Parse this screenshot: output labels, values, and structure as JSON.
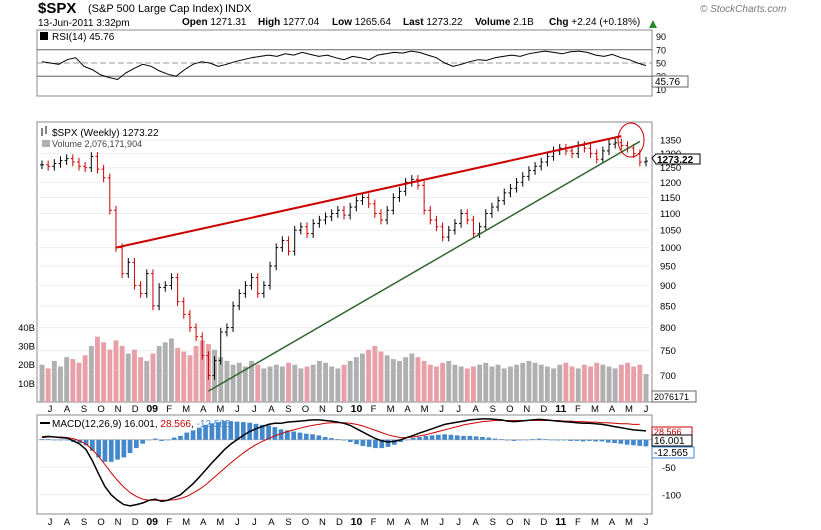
{
  "header": {
    "symbol": "$SPX",
    "name": "(S&P 500 Large Cap Index)",
    "exchange": "INDX",
    "brand": "© StockCharts.com",
    "date": "13-Jun-2011 3:32pm",
    "open_label": "Open",
    "open": "1271.31",
    "high_label": "High",
    "high": "1277.04",
    "low_label": "Low",
    "low": "1265.64",
    "last_label": "Last",
    "last": "1273.22",
    "volume_label": "Volume",
    "volume": "2.1B",
    "chg_label": "Chg",
    "chg": "+2.24 (+0.18%)"
  },
  "colors": {
    "up_bar": "#000000",
    "down_bar": "#cc0000",
    "volume_up": "#b0b0b0",
    "volume_down": "#e8a0a8",
    "upper_trendline": "#cc0000",
    "lower_trendline": "#336633",
    "macd_line": "#000000",
    "signal_line": "#cc0000",
    "histogram": "#4488cc",
    "rsi_line": "#000000"
  },
  "chart_data": [
    {
      "type": "line",
      "panel": "RSI",
      "legend": "RSI(14) 45.76",
      "current_value": "45.76",
      "ylim": [
        0,
        100
      ],
      "y_ticks": [
        10,
        30,
        50,
        70,
        90
      ],
      "reference_lines": [
        30,
        70
      ],
      "values": [
        52,
        50,
        48,
        55,
        58,
        45,
        40,
        32,
        28,
        25,
        35,
        42,
        48,
        45,
        38,
        33,
        30,
        40,
        48,
        52,
        50,
        45,
        48,
        52,
        55,
        58,
        60,
        62,
        60,
        64,
        62,
        66,
        63,
        60,
        62,
        58,
        55,
        60,
        58,
        55,
        62,
        64,
        66,
        65,
        68,
        66,
        62,
        58,
        50,
        45,
        48,
        52,
        55,
        54,
        58,
        60,
        62,
        60,
        64,
        66,
        68,
        66,
        64,
        67,
        68,
        66,
        62,
        60,
        63,
        58,
        55,
        50,
        46
      ]
    },
    {
      "type": "bar",
      "panel": "Price",
      "legend": "$SPX (Weekly) 1273.22",
      "volume_legend": "Volume 2,076,171,904",
      "current_value": "1273.22",
      "current_volume_label": "2076171",
      "y_scale": "log",
      "ylim": [
        650,
        1420
      ],
      "y_ticks": [
        700,
        750,
        800,
        850,
        900,
        950,
        1000,
        1050,
        1100,
        1150,
        1200,
        1250,
        1300,
        1350
      ],
      "volume_ticks": [
        "10B",
        "20B",
        "30B",
        "40B"
      ],
      "volume_max": 45,
      "x_labels": [
        "J",
        "A",
        "S",
        "O",
        "N",
        "D",
        "09",
        "F",
        "M",
        "A",
        "M",
        "J",
        "J",
        "A",
        "S",
        "O",
        "N",
        "D",
        "10",
        "F",
        "M",
        "A",
        "M",
        "J",
        "J",
        "A",
        "S",
        "O",
        "N",
        "D",
        "11",
        "F",
        "M",
        "A",
        "M",
        "J"
      ],
      "closes": [
        1260,
        1255,
        1265,
        1275,
        1282,
        1270,
        1255,
        1250,
        1290,
        1245,
        1215,
        1110,
        1000,
        930,
        960,
        900,
        880,
        930,
        850,
        895,
        900,
        920,
        860,
        830,
        800,
        780,
        740,
        700,
        730,
        790,
        800,
        850,
        880,
        900,
        920,
        880,
        900,
        950,
        1000,
        1020,
        990,
        1050,
        1060,
        1040,
        1070,
        1080,
        1090,
        1100,
        1110,
        1095,
        1120,
        1140,
        1150,
        1130,
        1100,
        1080,
        1110,
        1150,
        1170,
        1200,
        1210,
        1190,
        1110,
        1080,
        1060,
        1030,
        1050,
        1070,
        1100,
        1080,
        1040,
        1060,
        1100,
        1120,
        1140,
        1165,
        1180,
        1200,
        1220,
        1240,
        1255,
        1270,
        1290,
        1310,
        1320,
        1310,
        1300,
        1330,
        1320,
        1300,
        1280,
        1310,
        1335,
        1340,
        1330,
        1320,
        1300,
        1270,
        1273
      ],
      "volumes": [
        20,
        18,
        22,
        19,
        24,
        23,
        21,
        25,
        30,
        35,
        32,
        28,
        33,
        30,
        26,
        28,
        24,
        22,
        26,
        30,
        32,
        34,
        29,
        27,
        25,
        30,
        33,
        31,
        28,
        24,
        22,
        20,
        21,
        19,
        22,
        20,
        18,
        19,
        20,
        19,
        21,
        20,
        18,
        19,
        20,
        22,
        21,
        19,
        18,
        20,
        22,
        24,
        26,
        28,
        30,
        27,
        25,
        23,
        22,
        24,
        26,
        24,
        22,
        20,
        19,
        21,
        22,
        20,
        19,
        18,
        19,
        20,
        21,
        19,
        20,
        18,
        19,
        20,
        21,
        22,
        21,
        20,
        19,
        18,
        20,
        21,
        19,
        18,
        20,
        19,
        21,
        20,
        19,
        18,
        20,
        21,
        19,
        20,
        15
      ],
      "annotations": [
        {
          "kind": "trendline",
          "name": "upper resistance",
          "points": [
            [
              12,
              1000
            ],
            [
              94,
              1365
            ]
          ]
        },
        {
          "kind": "trendline",
          "name": "lower support",
          "points": [
            [
              27,
              670
            ],
            [
              97,
              1345
            ]
          ]
        }
      ]
    },
    {
      "type": "line",
      "panel": "MACD",
      "legend": "MACD(12,26,9) 16.001, 28.566, -12.565",
      "macd_value": "16.001",
      "signal_value": "28.566",
      "hist_value": "-12.565",
      "y_ticks": [
        -100,
        -50,
        0
      ],
      "ylim": [
        -135,
        45
      ],
      "x_labels": [
        "J",
        "A",
        "S",
        "O",
        "N",
        "D",
        "09",
        "F",
        "M",
        "A",
        "M",
        "J",
        "J",
        "A",
        "S",
        "O",
        "N",
        "D",
        "10",
        "F",
        "M",
        "A",
        "M",
        "J",
        "J",
        "A",
        "S",
        "O",
        "N",
        "D",
        "11",
        "F",
        "M",
        "A",
        "M",
        "J"
      ],
      "macd": [
        5,
        6,
        5,
        4,
        3,
        -2,
        -8,
        -18,
        -38,
        -62,
        -85,
        -100,
        -110,
        -118,
        -120,
        -118,
        -115,
        -110,
        -108,
        -112,
        -110,
        -105,
        -100,
        -90,
        -80,
        -68,
        -55,
        -42,
        -30,
        -18,
        -8,
        0,
        8,
        15,
        20,
        24,
        28,
        30,
        30,
        32,
        33,
        34,
        35,
        36,
        36,
        35,
        34,
        32,
        30,
        26,
        20,
        14,
        8,
        2,
        -2,
        -4,
        -3,
        0,
        4,
        8,
        12,
        16,
        20,
        24,
        28,
        30,
        32,
        34,
        36,
        37,
        38,
        38,
        37,
        36,
        34,
        33,
        34,
        35,
        36,
        37,
        36,
        35,
        34,
        33,
        32,
        31,
        30,
        30,
        29,
        28,
        26,
        24,
        22,
        20,
        18,
        17,
        16
      ],
      "signal": [
        4,
        5,
        5,
        5,
        4,
        2,
        -2,
        -8,
        -18,
        -30,
        -45,
        -60,
        -74,
        -86,
        -96,
        -103,
        -108,
        -110,
        -110,
        -110,
        -110,
        -109,
        -107,
        -103,
        -97,
        -90,
        -82,
        -72,
        -62,
        -52,
        -42,
        -33,
        -24,
        -16,
        -9,
        -3,
        2,
        7,
        11,
        15,
        18,
        21,
        24,
        26,
        28,
        30,
        31,
        31,
        31,
        30,
        28,
        25,
        21,
        17,
        13,
        9,
        6,
        4,
        4,
        5,
        7,
        9,
        12,
        15,
        18,
        21,
        24,
        27,
        29,
        31,
        33,
        34,
        35,
        35,
        35,
        35,
        35,
        35,
        35,
        35,
        35,
        35,
        35,
        34,
        34,
        33,
        33,
        32,
        32,
        31,
        31,
        30,
        29,
        29,
        28,
        28
      ],
      "histogram": [
        1,
        1,
        0,
        -1,
        -1,
        -4,
        -6,
        -10,
        -20,
        -32,
        -40,
        -40,
        -36,
        -32,
        -24,
        -15,
        -7,
        0,
        2,
        -2,
        0,
        4,
        7,
        13,
        17,
        22,
        27,
        30,
        32,
        34,
        34,
        33,
        32,
        31,
        29,
        27,
        26,
        23,
        19,
        17,
        15,
        13,
        11,
        10,
        8,
        5,
        3,
        1,
        -1,
        -4,
        -8,
        -11,
        -13,
        -15,
        -15,
        -13,
        -9,
        -4,
        0,
        3,
        5,
        7,
        8,
        9,
        10,
        9,
        8,
        7,
        7,
        6,
        5,
        4,
        2,
        1,
        -1,
        -2,
        -1,
        0,
        1,
        2,
        1,
        0,
        -1,
        -1,
        -2,
        -2,
        -3,
        -2,
        -3,
        -3,
        -5,
        -6,
        -7,
        -9,
        -10,
        -11,
        -12
      ]
    }
  ]
}
